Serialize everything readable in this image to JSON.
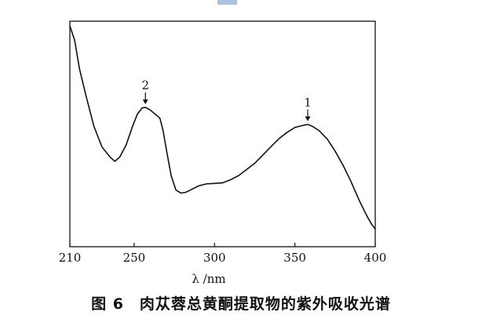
{
  "caption": "图 6　肉苁蓉总黄酮提取物的紫外吸收光谱",
  "colors": {
    "accent": "#a9c4dc",
    "line": "#111111"
  },
  "chart_data": {
    "type": "line",
    "title": "",
    "xlabel": "λ /nm",
    "ylabel": "",
    "xlim": [
      210,
      400
    ],
    "ylim": [
      0,
      1
    ],
    "x_ticks": [
      "210",
      "250",
      "300",
      "350",
      "400"
    ],
    "grid": false,
    "series": [
      {
        "x": [
          210,
          213,
          216,
          220,
          225,
          230,
          235,
          238,
          241,
          245,
          249,
          252,
          255,
          257,
          260,
          263,
          266,
          268,
          270,
          273,
          276,
          279,
          282,
          285,
          290,
          295,
          300,
          305,
          310,
          315,
          320,
          325,
          330,
          335,
          340,
          345,
          350,
          355,
          358,
          361,
          365,
          370,
          375,
          380,
          385,
          390,
          395,
          398,
          400
        ],
        "y": [
          1.0,
          0.93,
          0.79,
          0.66,
          0.51,
          0.41,
          0.36,
          0.34,
          0.36,
          0.42,
          0.51,
          0.57,
          0.6,
          0.603,
          0.59,
          0.57,
          0.55,
          0.49,
          0.4,
          0.27,
          0.2,
          0.185,
          0.188,
          0.2,
          0.22,
          0.23,
          0.232,
          0.235,
          0.25,
          0.27,
          0.3,
          0.33,
          0.37,
          0.41,
          0.45,
          0.48,
          0.505,
          0.515,
          0.52,
          0.51,
          0.49,
          0.45,
          0.39,
          0.32,
          0.24,
          0.15,
          0.07,
          0.03,
          0.01
        ]
      }
    ],
    "annotations": [
      {
        "text": "2",
        "x": 257
      },
      {
        "text": "1",
        "x": 358
      }
    ]
  }
}
